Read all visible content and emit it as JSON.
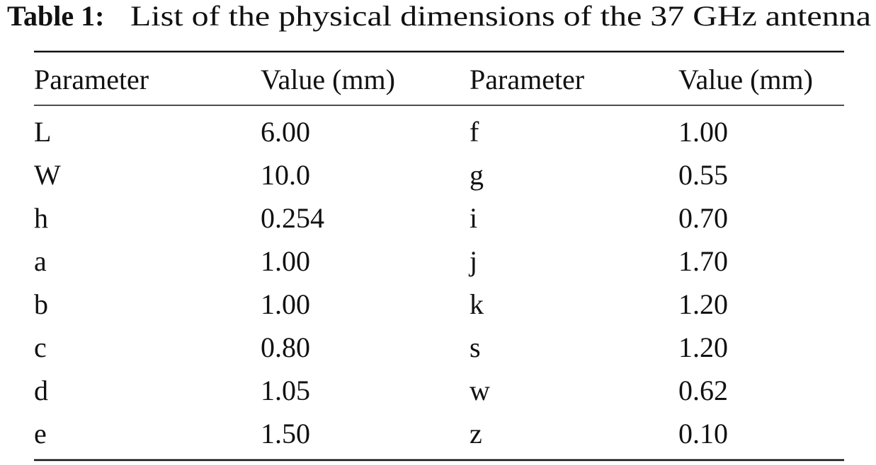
{
  "caption": {
    "label": "Table 1:",
    "text": "List of the physical dimensions of the 37 GHz antenna"
  },
  "table": {
    "header": [
      "Parameter",
      "Value (mm)",
      "Parameter",
      "Value (mm)"
    ],
    "rows": [
      [
        "L",
        "6.00",
        "f",
        "1.00"
      ],
      [
        "W",
        "10.0",
        "g",
        "0.55"
      ],
      [
        "h",
        "0.254",
        "i",
        "0.70"
      ],
      [
        "a",
        "1.00",
        "j",
        "1.70"
      ],
      [
        "b",
        "1.00",
        "k",
        "1.20"
      ],
      [
        "c",
        "0.80",
        "s",
        "1.20"
      ],
      [
        "d",
        "1.05",
        "w",
        "0.62"
      ],
      [
        "e",
        "1.50",
        "z",
        "0.10"
      ]
    ]
  }
}
